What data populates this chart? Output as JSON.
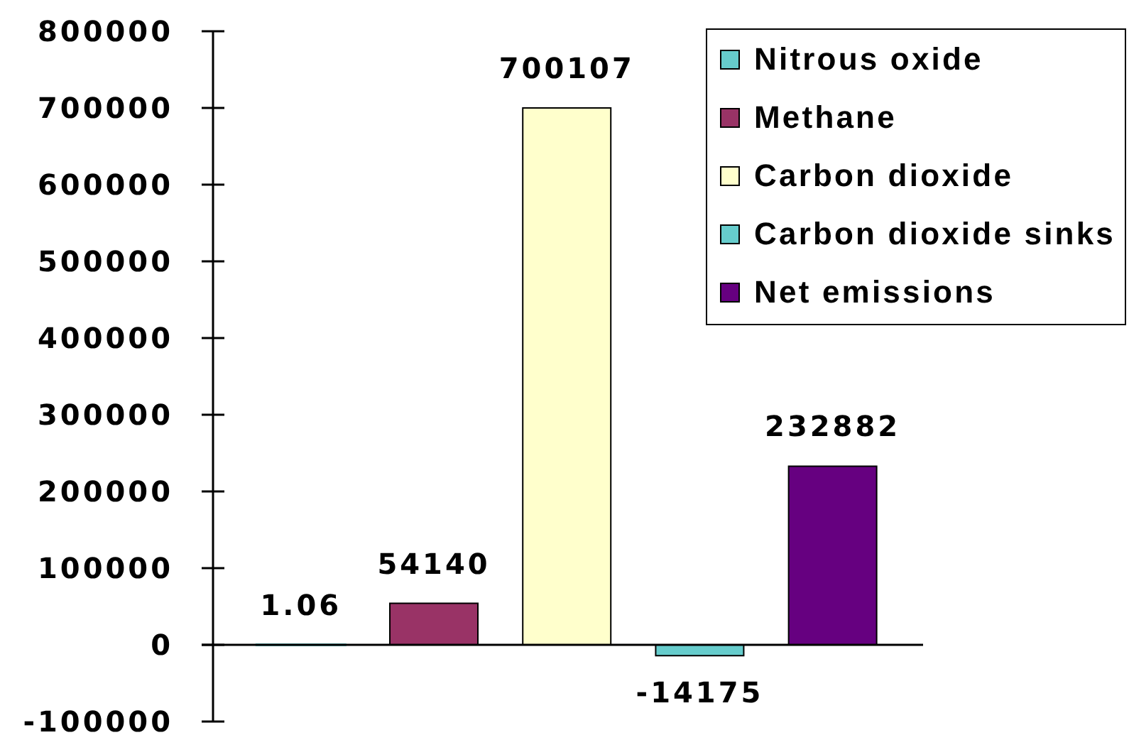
{
  "chart_data": {
    "type": "bar",
    "categories": [
      null,
      null,
      null,
      null,
      null
    ],
    "series": [
      {
        "name": "Nitrous oxide",
        "color": "#66cccc",
        "values": [
          1.06,
          null,
          null,
          null,
          null
        ]
      },
      {
        "name": "Methane",
        "color": "#993366",
        "values": [
          null,
          54140,
          null,
          null,
          null
        ]
      },
      {
        "name": "Carbon dioxide",
        "color": "#ffffcc",
        "values": [
          null,
          null,
          700107,
          null,
          null
        ]
      },
      {
        "name": "Carbon dioxide sinks",
        "color": "#66cccc",
        "values": [
          null,
          null,
          null,
          -14175,
          null
        ]
      },
      {
        "name": "Net emissions",
        "color": "#660080",
        "values": [
          null,
          null,
          null,
          null,
          232882
        ]
      }
    ],
    "ylim": [
      -100000,
      800000
    ],
    "yticks": [
      -100000,
      0,
      100000,
      200000,
      300000,
      400000,
      500000,
      600000,
      700000,
      800000
    ],
    "data_labels": true,
    "legend": "top right",
    "tick_labels": "y"
  }
}
